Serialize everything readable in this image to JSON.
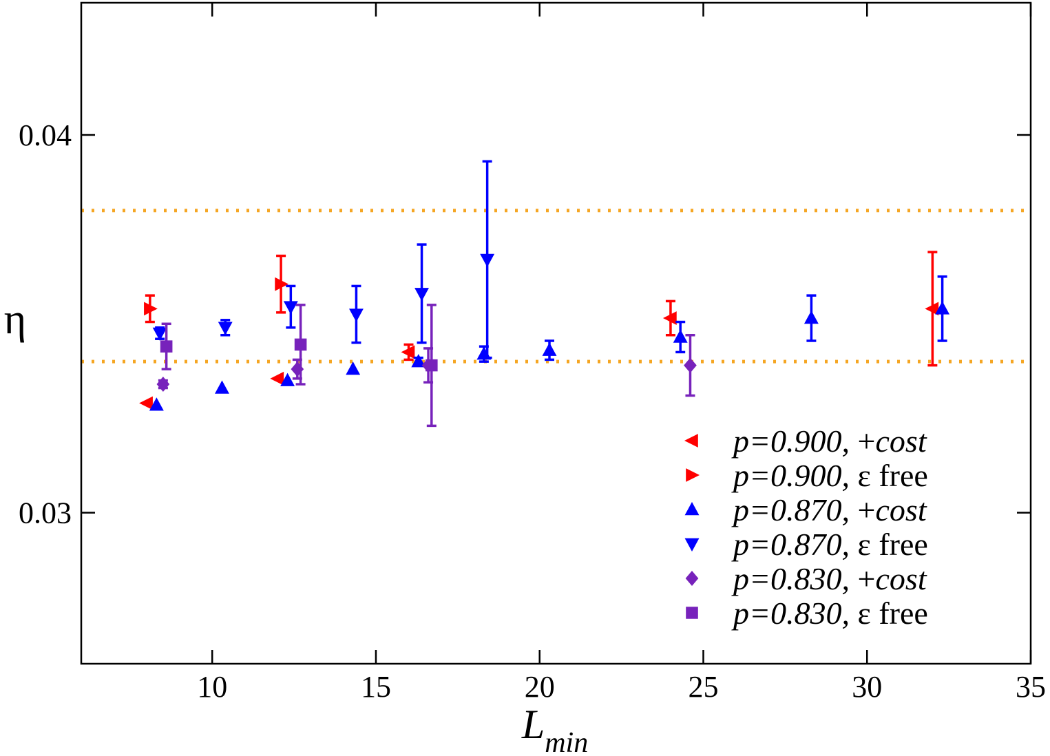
{
  "chart_data": {
    "type": "scatter",
    "title": "",
    "xlabel": "L",
    "xlabel_sub": "min",
    "ylabel": "η",
    "xlim": [
      6,
      35
    ],
    "ylim": [
      0.026,
      0.0435
    ],
    "xticks": [
      10,
      15,
      20,
      25,
      30,
      35
    ],
    "xtick_labels": [
      "10",
      "15",
      "20",
      "25",
      "30",
      "35"
    ],
    "yticks": [
      0.03,
      0.04
    ],
    "ytick_labels": [
      "0.03",
      "0.04"
    ],
    "grid": false,
    "legend_position": "bottom-right",
    "reference_lines": [
      {
        "y": 0.038,
        "color": "#f5a623",
        "style": "dotted"
      },
      {
        "y": 0.034,
        "color": "#f5a623",
        "style": "dotted"
      }
    ],
    "series": [
      {
        "label_italic": "p=0.900,",
        "label_sep": " +",
        "label_rest": "cost",
        "label_rest_italic": true,
        "color": "#ff0000",
        "marker": "triangle-left",
        "points": [
          {
            "x": 8.0,
            "y": 0.0329,
            "err": 0.0
          },
          {
            "x": 12.0,
            "y": 0.03355,
            "err": 0.0
          },
          {
            "x": 16.0,
            "y": 0.03425,
            "err": 0.0002
          },
          {
            "x": 24.0,
            "y": 0.03515,
            "err": 0.00045
          },
          {
            "x": 32.0,
            "y": 0.0354,
            "err": 0.0015
          }
        ]
      },
      {
        "label_italic": "p=0.900,",
        "label_sep": " ",
        "label_rest": "ε free",
        "label_rest_italic": false,
        "color": "#ff0000",
        "marker": "triangle-right",
        "points": [
          {
            "x": 8.1,
            "y": 0.0354,
            "err": 0.00035
          },
          {
            "x": 12.1,
            "y": 0.03605,
            "err": 0.00075
          }
        ]
      },
      {
        "label_italic": "p=0.870,",
        "label_sep": " +",
        "label_rest": "cost",
        "label_rest_italic": true,
        "color": "#0000ff",
        "marker": "triangle-up",
        "points": [
          {
            "x": 8.3,
            "y": 0.03285,
            "err": 0.0
          },
          {
            "x": 10.3,
            "y": 0.0333,
            "err": 0.0
          },
          {
            "x": 12.3,
            "y": 0.0335,
            "err": 0.0
          },
          {
            "x": 14.3,
            "y": 0.0338,
            "err": 0.0
          },
          {
            "x": 16.3,
            "y": 0.034,
            "err": 0.0001
          },
          {
            "x": 18.3,
            "y": 0.0342,
            "err": 0.0002
          },
          {
            "x": 20.3,
            "y": 0.0343,
            "err": 0.00025
          },
          {
            "x": 24.3,
            "y": 0.03465,
            "err": 0.0004
          },
          {
            "x": 28.3,
            "y": 0.03515,
            "err": 0.0006
          },
          {
            "x": 32.3,
            "y": 0.0354,
            "err": 0.00085
          }
        ]
      },
      {
        "label_italic": "p=0.870,",
        "label_sep": " ",
        "label_rest": "ε free",
        "label_rest_italic": false,
        "color": "#0000ff",
        "marker": "triangle-down",
        "points": [
          {
            "x": 8.4,
            "y": 0.03475,
            "err": 0.00015
          },
          {
            "x": 10.4,
            "y": 0.0349,
            "err": 0.0002
          },
          {
            "x": 12.4,
            "y": 0.03545,
            "err": 0.00055
          },
          {
            "x": 14.4,
            "y": 0.03525,
            "err": 0.00075
          },
          {
            "x": 16.4,
            "y": 0.0358,
            "err": 0.0013
          },
          {
            "x": 18.4,
            "y": 0.0367,
            "err": 0.0026
          }
        ]
      },
      {
        "label_italic": "p=0.830,",
        "label_sep": " +",
        "label_rest": "cost",
        "label_rest_italic": true,
        "color": "#7722bb",
        "marker": "diamond",
        "points": [
          {
            "x": 8.5,
            "y": 0.0334,
            "err": 0.0001
          },
          {
            "x": 12.6,
            "y": 0.0338,
            "err": 0.00025
          },
          {
            "x": 16.6,
            "y": 0.0339,
            "err": 0.00045
          },
          {
            "x": 24.6,
            "y": 0.0339,
            "err": 0.0008
          }
        ]
      },
      {
        "label_italic": "p=0.830,",
        "label_sep": " ",
        "label_rest": "ε free",
        "label_rest_italic": false,
        "color": "#7722bb",
        "marker": "square",
        "points": [
          {
            "x": 8.6,
            "y": 0.0344,
            "err": 0.0006
          },
          {
            "x": 12.7,
            "y": 0.03445,
            "err": 0.00105
          },
          {
            "x": 16.7,
            "y": 0.0339,
            "err": 0.0016
          }
        ]
      }
    ]
  }
}
